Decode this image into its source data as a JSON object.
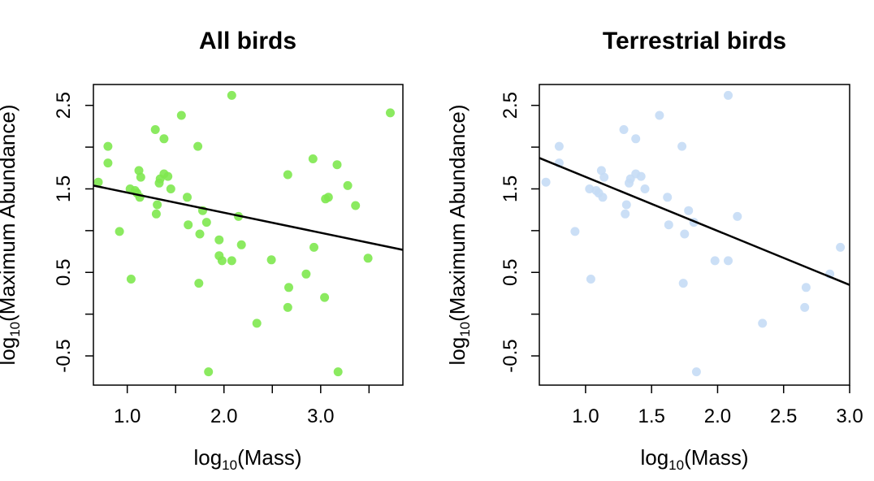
{
  "colors": {
    "all_points": "#7ee84f",
    "terrestrial_points": "#c5dcf5",
    "regression_line": "#000000",
    "axes": "#000000",
    "background": "#ffffff"
  },
  "chart_data": [
    {
      "type": "scatter",
      "title": "All birds",
      "xlabel": {
        "prefix": "log",
        "sub": "10",
        "suffix": "(Mass)"
      },
      "ylabel": {
        "prefix": "log",
        "sub": "10",
        "suffix": "(Maximum Abundance)"
      },
      "xlim": [
        0.65,
        3.85
      ],
      "ylim": [
        -0.85,
        2.75
      ],
      "xticks": [
        1.0,
        1.5,
        2.0,
        2.5,
        3.0,
        3.5
      ],
      "xtick_labels": [
        "1.0",
        "",
        "2.0",
        "",
        "3.0",
        ""
      ],
      "yticks": [
        -0.5,
        0.0,
        0.5,
        1.0,
        1.5,
        2.0,
        2.5
      ],
      "ytick_labels": [
        "-0.5",
        "",
        "0.5",
        "",
        "1.5",
        "",
        "2.5"
      ],
      "grid": false,
      "regression": {
        "x": [
          0.65,
          3.85
        ],
        "y": [
          1.54,
          0.77
        ]
      },
      "points": [
        [
          0.7,
          1.58
        ],
        [
          0.8,
          2.01
        ],
        [
          0.8,
          1.81
        ],
        [
          0.92,
          0.99
        ],
        [
          1.03,
          1.5
        ],
        [
          1.04,
          0.42
        ],
        [
          1.08,
          1.48
        ],
        [
          1.1,
          1.45
        ],
        [
          1.12,
          1.72
        ],
        [
          1.13,
          1.4
        ],
        [
          1.14,
          1.64
        ],
        [
          1.29,
          2.21
        ],
        [
          1.3,
          1.2
        ],
        [
          1.31,
          1.31
        ],
        [
          1.33,
          1.57
        ],
        [
          1.34,
          1.62
        ],
        [
          1.38,
          1.68
        ],
        [
          1.38,
          2.1
        ],
        [
          1.42,
          1.65
        ],
        [
          1.45,
          1.5
        ],
        [
          1.56,
          2.38
        ],
        [
          1.62,
          1.4
        ],
        [
          1.63,
          1.07
        ],
        [
          1.73,
          2.01
        ],
        [
          1.75,
          0.96
        ],
        [
          1.74,
          0.37
        ],
        [
          1.78,
          1.24
        ],
        [
          1.82,
          1.1
        ],
        [
          1.84,
          -0.69
        ],
        [
          1.95,
          0.89
        ],
        [
          1.95,
          0.7
        ],
        [
          1.98,
          0.64
        ],
        [
          2.08,
          2.62
        ],
        [
          2.08,
          0.64
        ],
        [
          2.15,
          1.17
        ],
        [
          2.18,
          0.83
        ],
        [
          2.34,
          -0.11
        ],
        [
          2.49,
          0.65
        ],
        [
          2.66,
          1.67
        ],
        [
          2.66,
          0.08
        ],
        [
          2.67,
          0.32
        ],
        [
          2.85,
          0.48
        ],
        [
          2.92,
          1.86
        ],
        [
          2.93,
          0.8
        ],
        [
          3.04,
          0.2
        ],
        [
          3.05,
          1.38
        ],
        [
          3.08,
          1.4
        ],
        [
          3.17,
          1.79
        ],
        [
          3.18,
          -0.69
        ],
        [
          3.28,
          1.54
        ],
        [
          3.36,
          1.3
        ],
        [
          3.49,
          0.67
        ],
        [
          3.72,
          2.41
        ]
      ]
    },
    {
      "type": "scatter",
      "title": "Terrestrial birds",
      "xlabel": {
        "prefix": "log",
        "sub": "10",
        "suffix": "(Mass)"
      },
      "ylabel": {
        "prefix": "log",
        "sub": "10",
        "suffix": "(Maximum Abundance)"
      },
      "xlim": [
        0.65,
        3.0
      ],
      "ylim": [
        -0.85,
        2.75
      ],
      "xticks": [
        1.0,
        1.5,
        2.0,
        2.5,
        3.0
      ],
      "xtick_labels": [
        "1.0",
        "1.5",
        "2.0",
        "2.5",
        "3.0"
      ],
      "yticks": [
        -0.5,
        0.0,
        0.5,
        1.0,
        1.5,
        2.0,
        2.5
      ],
      "ytick_labels": [
        "-0.5",
        "",
        "0.5",
        "",
        "1.5",
        "",
        "2.5"
      ],
      "grid": false,
      "regression": {
        "x": [
          0.65,
          3.0
        ],
        "y": [
          1.87,
          0.35
        ]
      },
      "points": [
        [
          0.7,
          1.58
        ],
        [
          0.8,
          2.01
        ],
        [
          0.8,
          1.81
        ],
        [
          0.92,
          0.99
        ],
        [
          1.03,
          1.5
        ],
        [
          1.04,
          0.42
        ],
        [
          1.08,
          1.48
        ],
        [
          1.1,
          1.45
        ],
        [
          1.12,
          1.72
        ],
        [
          1.13,
          1.4
        ],
        [
          1.14,
          1.64
        ],
        [
          1.29,
          2.21
        ],
        [
          1.3,
          1.2
        ],
        [
          1.31,
          1.31
        ],
        [
          1.33,
          1.57
        ],
        [
          1.34,
          1.62
        ],
        [
          1.38,
          1.68
        ],
        [
          1.38,
          2.1
        ],
        [
          1.42,
          1.65
        ],
        [
          1.45,
          1.5
        ],
        [
          1.56,
          2.38
        ],
        [
          1.62,
          1.4
        ],
        [
          1.63,
          1.07
        ],
        [
          1.73,
          2.01
        ],
        [
          1.75,
          0.96
        ],
        [
          1.74,
          0.37
        ],
        [
          1.78,
          1.24
        ],
        [
          1.82,
          1.1
        ],
        [
          1.84,
          -0.69
        ],
        [
          1.98,
          0.64
        ],
        [
          2.08,
          2.62
        ],
        [
          2.08,
          0.64
        ],
        [
          2.15,
          1.17
        ],
        [
          2.34,
          -0.11
        ],
        [
          2.66,
          0.08
        ],
        [
          2.67,
          0.32
        ],
        [
          2.85,
          0.48
        ],
        [
          2.93,
          0.8
        ]
      ]
    }
  ]
}
